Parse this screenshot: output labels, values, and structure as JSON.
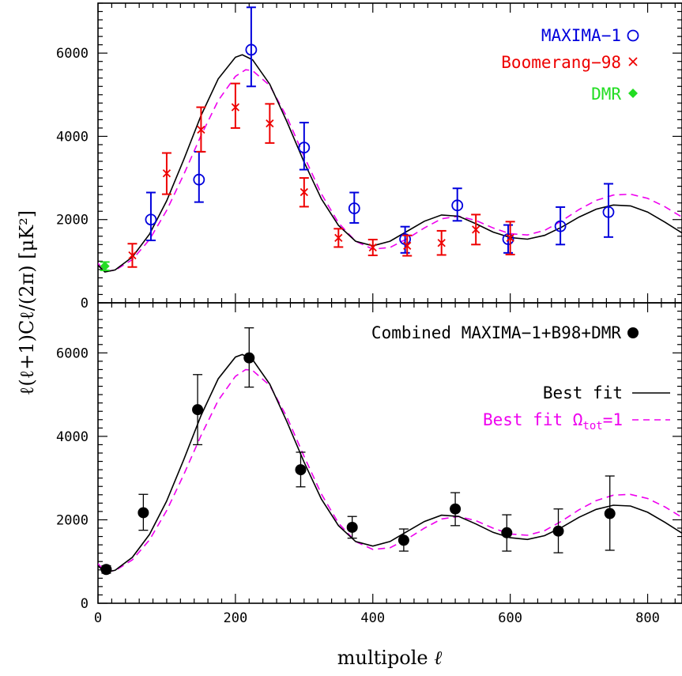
{
  "chart_data": [
    {
      "type": "scatter",
      "panel": "top",
      "xlim": [
        0,
        850
      ],
      "ylim": [
        0,
        7200
      ],
      "x_ticks": [
        0,
        200,
        400,
        600,
        800
      ],
      "y_ticks": [
        0,
        2000,
        4000,
        6000
      ],
      "x_tick_labels": [
        "0",
        "200",
        "400",
        "600",
        "800"
      ],
      "y_tick_labels": [
        "0",
        "2000",
        "4000",
        "6000"
      ],
      "legend_position": "top-right",
      "series": [
        {
          "name": "MAXIMA−1",
          "marker": "open-circle",
          "color": "#0000dd",
          "points": [
            {
              "x": 77,
              "y": 2000,
              "lo": 1500,
              "hi": 2650
            },
            {
              "x": 147,
              "y": 2960,
              "lo": 2420,
              "hi": 3630
            },
            {
              "x": 223,
              "y": 6080,
              "lo": 5200,
              "hi": 7100
            },
            {
              "x": 300,
              "y": 3730,
              "lo": 3200,
              "hi": 4330
            },
            {
              "x": 373,
              "y": 2270,
              "lo": 1920,
              "hi": 2650
            },
            {
              "x": 447,
              "y": 1530,
              "lo": 1200,
              "hi": 1830
            },
            {
              "x": 523,
              "y": 2340,
              "lo": 1970,
              "hi": 2750
            },
            {
              "x": 597,
              "y": 1530,
              "lo": 1200,
              "hi": 1870
            },
            {
              "x": 673,
              "y": 1840,
              "lo": 1400,
              "hi": 2300
            },
            {
              "x": 743,
              "y": 2180,
              "lo": 1580,
              "hi": 2860
            }
          ]
        },
        {
          "name": "Boomerang−98",
          "marker": "cross",
          "color": "#ee0000",
          "points": [
            {
              "x": 50,
              "y": 1140,
              "lo": 860,
              "hi": 1420
            },
            {
              "x": 100,
              "y": 3110,
              "lo": 2610,
              "hi": 3600
            },
            {
              "x": 150,
              "y": 4160,
              "lo": 3630,
              "hi": 4700
            },
            {
              "x": 200,
              "y": 4700,
              "lo": 4200,
              "hi": 5270
            },
            {
              "x": 250,
              "y": 4310,
              "lo": 3840,
              "hi": 4780
            },
            {
              "x": 300,
              "y": 2660,
              "lo": 2310,
              "hi": 3000
            },
            {
              "x": 350,
              "y": 1560,
              "lo": 1340,
              "hi": 1780
            },
            {
              "x": 400,
              "y": 1330,
              "lo": 1140,
              "hi": 1520
            },
            {
              "x": 450,
              "y": 1370,
              "lo": 1130,
              "hi": 1620
            },
            {
              "x": 500,
              "y": 1440,
              "lo": 1150,
              "hi": 1730
            },
            {
              "x": 550,
              "y": 1760,
              "lo": 1400,
              "hi": 2120
            },
            {
              "x": 600,
              "y": 1560,
              "lo": 1160,
              "hi": 1950
            }
          ]
        },
        {
          "name": "DMR",
          "marker": "filled-diamond",
          "color": "#22dd22",
          "points": [
            {
              "x": 10,
              "y": 880,
              "lo": 780,
              "hi": 980
            }
          ]
        }
      ],
      "models": [
        {
          "name": "Best fit",
          "style": "solid",
          "color": "#000000"
        },
        {
          "name": "Best fit Ω_tot=1",
          "style": "dashed",
          "color": "#ee00ee"
        }
      ]
    },
    {
      "type": "scatter",
      "panel": "bottom",
      "xlabel": "multipole ℓ",
      "ylabel": "ℓ(ℓ+1)C_ℓ/(2π) [μK²]",
      "xlim": [
        0,
        850
      ],
      "ylim": [
        0,
        7200
      ],
      "x_ticks": [
        0,
        200,
        400,
        600,
        800
      ],
      "y_ticks": [
        0,
        2000,
        4000,
        6000
      ],
      "x_tick_labels": [
        "0",
        "200",
        "400",
        "600",
        "800"
      ],
      "y_tick_labels": [
        "0",
        "2000",
        "4000",
        "6000"
      ],
      "legend_position": "top-right",
      "series": [
        {
          "name": "Combined MAXIMA−1+B98+DMR",
          "marker": "filled-circle",
          "color": "#000000",
          "points": [
            {
              "x": 12,
              "y": 810,
              "lo": 720,
              "hi": 900
            },
            {
              "x": 66,
              "y": 2170,
              "lo": 1750,
              "hi": 2610
            },
            {
              "x": 145,
              "y": 4640,
              "lo": 3800,
              "hi": 5480
            },
            {
              "x": 220,
              "y": 5880,
              "lo": 5180,
              "hi": 6600
            },
            {
              "x": 295,
              "y": 3200,
              "lo": 2790,
              "hi": 3620
            },
            {
              "x": 370,
              "y": 1820,
              "lo": 1560,
              "hi": 2080
            },
            {
              "x": 445,
              "y": 1510,
              "lo": 1250,
              "hi": 1780
            },
            {
              "x": 520,
              "y": 2260,
              "lo": 1860,
              "hi": 2650
            },
            {
              "x": 595,
              "y": 1690,
              "lo": 1250,
              "hi": 2120
            },
            {
              "x": 670,
              "y": 1730,
              "lo": 1210,
              "hi": 2260
            },
            {
              "x": 745,
              "y": 2150,
              "lo": 1270,
              "hi": 3050
            }
          ]
        }
      ],
      "models": [
        {
          "name": "Best fit",
          "style": "solid",
          "color": "#000000"
        },
        {
          "name": "Best fit Ω_tot=1",
          "style": "dashed",
          "color": "#ee00ee"
        }
      ]
    }
  ],
  "legend": {
    "maxima": "MAXIMA−1",
    "boomerang": "Boomerang−98",
    "dmr": "DMR",
    "combined": "Combined MAXIMA−1+B98+DMR",
    "best_fit": "Best fit",
    "best_fit_flat_prefix": "Best fit Ω",
    "best_fit_flat_sub": "tot",
    "best_fit_flat_suffix": "=1"
  },
  "axes": {
    "xlabel_text": "multipole ",
    "xlabel_symbol": "ℓ",
    "ylabel": "ℓ(ℓ+1)Cℓ/(2π)  [μK²]"
  },
  "curves": {
    "best_fit": [
      [
        0,
        900
      ],
      [
        10,
        740
      ],
      [
        25,
        790
      ],
      [
        50,
        1100
      ],
      [
        75,
        1650
      ],
      [
        100,
        2450
      ],
      [
        125,
        3450
      ],
      [
        150,
        4500
      ],
      [
        175,
        5380
      ],
      [
        200,
        5900
      ],
      [
        210,
        5960
      ],
      [
        225,
        5840
      ],
      [
        250,
        5250
      ],
      [
        275,
        4350
      ],
      [
        300,
        3380
      ],
      [
        325,
        2500
      ],
      [
        350,
        1860
      ],
      [
        375,
        1480
      ],
      [
        400,
        1370
      ],
      [
        425,
        1480
      ],
      [
        450,
        1720
      ],
      [
        475,
        1960
      ],
      [
        500,
        2110
      ],
      [
        525,
        2080
      ],
      [
        550,
        1900
      ],
      [
        575,
        1700
      ],
      [
        600,
        1570
      ],
      [
        625,
        1530
      ],
      [
        650,
        1620
      ],
      [
        675,
        1820
      ],
      [
        700,
        2060
      ],
      [
        725,
        2250
      ],
      [
        750,
        2350
      ],
      [
        775,
        2330
      ],
      [
        800,
        2180
      ],
      [
        825,
        1940
      ],
      [
        850,
        1680
      ]
    ],
    "best_fit_flat": [
      [
        0,
        950
      ],
      [
        10,
        760
      ],
      [
        25,
        780
      ],
      [
        50,
        1040
      ],
      [
        75,
        1520
      ],
      [
        100,
        2220
      ],
      [
        125,
        3090
      ],
      [
        150,
        4020
      ],
      [
        175,
        4860
      ],
      [
        200,
        5440
      ],
      [
        215,
        5600
      ],
      [
        225,
        5580
      ],
      [
        250,
        5220
      ],
      [
        275,
        4460
      ],
      [
        300,
        3520
      ],
      [
        325,
        2620
      ],
      [
        350,
        1920
      ],
      [
        375,
        1480
      ],
      [
        400,
        1290
      ],
      [
        425,
        1330
      ],
      [
        450,
        1540
      ],
      [
        475,
        1800
      ],
      [
        500,
        2020
      ],
      [
        525,
        2080
      ],
      [
        550,
        1980
      ],
      [
        575,
        1800
      ],
      [
        600,
        1660
      ],
      [
        625,
        1630
      ],
      [
        650,
        1740
      ],
      [
        675,
        1970
      ],
      [
        700,
        2240
      ],
      [
        725,
        2460
      ],
      [
        750,
        2590
      ],
      [
        775,
        2610
      ],
      [
        800,
        2510
      ],
      [
        825,
        2310
      ],
      [
        850,
        2060
      ]
    ]
  }
}
